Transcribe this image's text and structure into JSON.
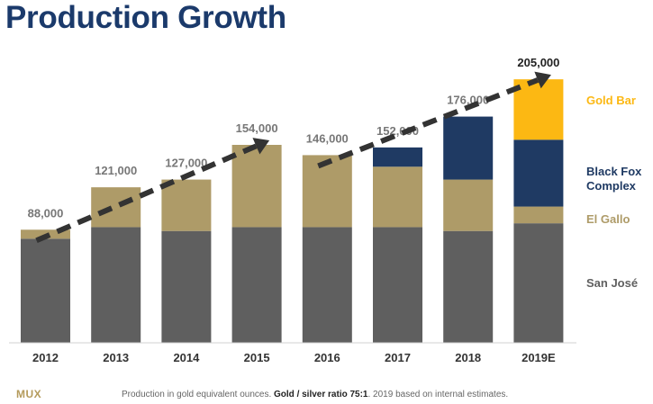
{
  "title": "Production Growth",
  "logo": "MUX",
  "footnote": {
    "prefix": "Production in gold equivalent ounces.",
    "bold": "Gold / silver ratio 75:1",
    "suffix": ". 2019 based on internal estimates."
  },
  "colors": {
    "San José": "#5f5f5f",
    "El Gallo": "#ae9b68",
    "Black Fox Complex": "#1f3a63",
    "Gold Bar": "#fcb813",
    "title": "#1b3a6b",
    "arrow": "#333333"
  },
  "legend": [
    "Gold Bar",
    "Black Fox Complex",
    "El Gallo",
    "San José"
  ],
  "chart_data": {
    "type": "bar",
    "stacked": true,
    "categories": [
      "2012",
      "2013",
      "2014",
      "2015",
      "2016",
      "2017",
      "2018",
      "2019E"
    ],
    "series": [
      {
        "name": "San José",
        "values": [
          81000,
          90000,
          87000,
          90000,
          90000,
          90000,
          87000,
          93000
        ]
      },
      {
        "name": "El Gallo",
        "values": [
          7000,
          31000,
          40000,
          64000,
          56000,
          47000,
          40000,
          13000
        ]
      },
      {
        "name": "Black Fox Complex",
        "values": [
          0,
          0,
          0,
          0,
          0,
          15000,
          49000,
          52000
        ]
      },
      {
        "name": "Gold Bar",
        "values": [
          0,
          0,
          0,
          0,
          0,
          0,
          0,
          47000
        ]
      }
    ],
    "totals": [
      "88,000",
      "121,000",
      "127,000",
      "154,000",
      "146,000",
      "152,000",
      "176,000",
      "205,000"
    ],
    "ylim": [
      0,
      210000
    ],
    "trend_arrows": [
      {
        "from": "2012",
        "to": "2015"
      },
      {
        "from": "2016",
        "to": "2019E"
      }
    ]
  }
}
